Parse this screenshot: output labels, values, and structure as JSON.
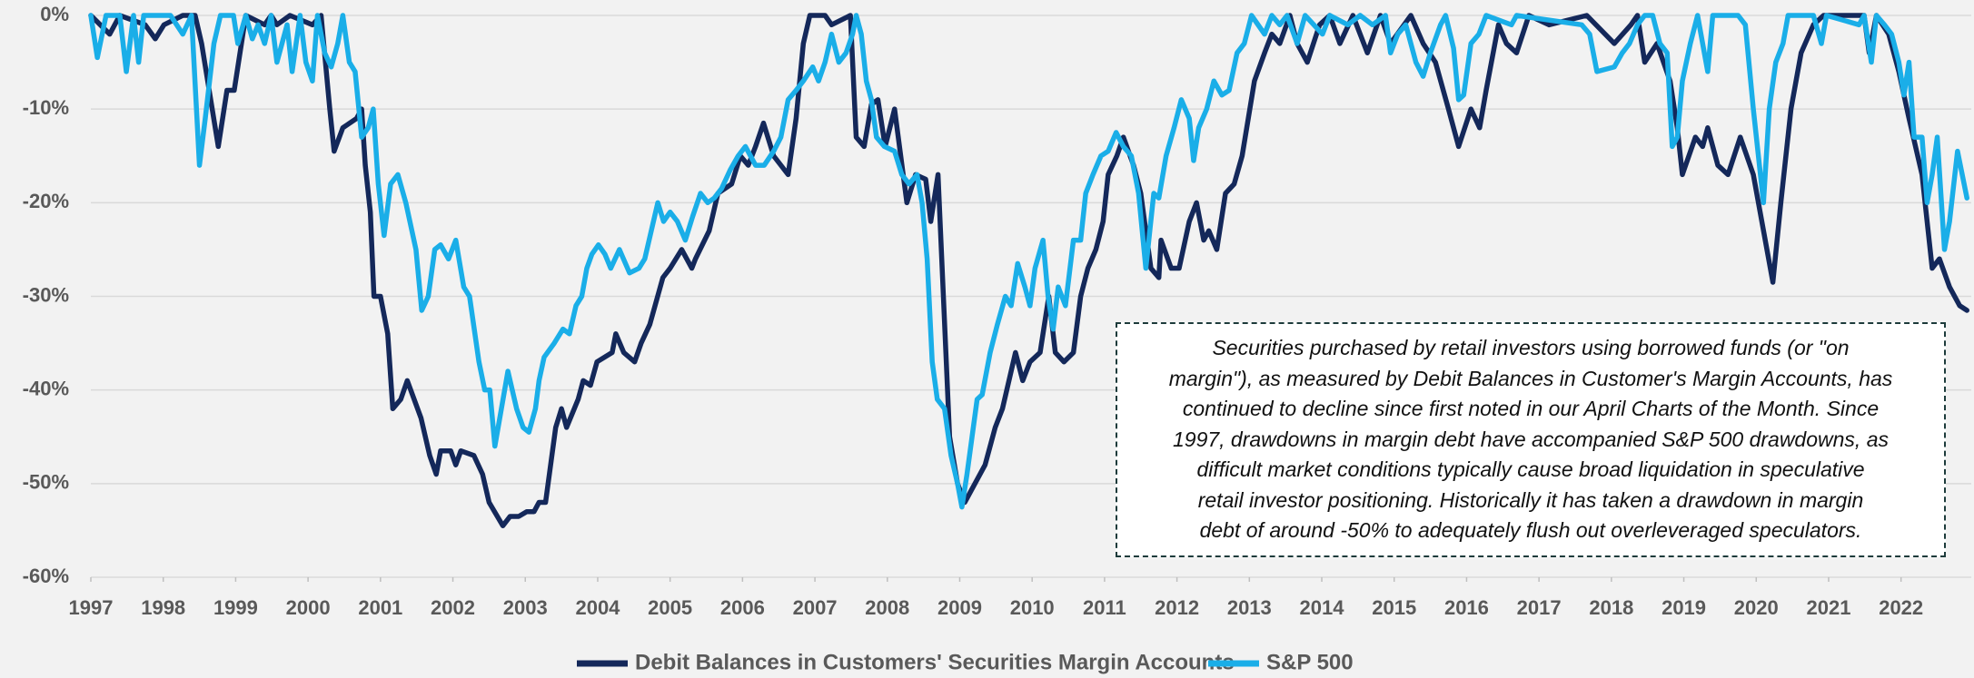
{
  "chart_data": {
    "type": "line",
    "ylim": [
      -60,
      0
    ],
    "yticks": [
      {
        "value": -60,
        "label": "-60%"
      },
      {
        "value": -50,
        "label": "-50%"
      },
      {
        "value": -40,
        "label": "-40%"
      },
      {
        "value": -30,
        "label": "-30%"
      },
      {
        "value": -20,
        "label": "-20%"
      },
      {
        "value": -10,
        "label": "-10%"
      },
      {
        "value": 0,
        "label": "0%"
      }
    ],
    "xlim": [
      1997,
      2022.97
    ],
    "xticks": [
      1997,
      1998,
      1999,
      2000,
      2001,
      2002,
      2003,
      2004,
      2005,
      2006,
      2007,
      2008,
      2009,
      2010,
      2011,
      2012,
      2013,
      2014,
      2015,
      2016,
      2017,
      2018,
      2019,
      2020,
      2021,
      2022
    ],
    "grid": true,
    "legend": "bottom",
    "series": [
      {
        "name": "Debit Balances in Customers' Securities Margin Accounts",
        "color": "#14285a",
        "x": [
          1997.0,
          1997.26,
          1997.4,
          1997.75,
          1997.89,
          1998.01,
          1998.27,
          1998.44,
          1998.53,
          1998.76,
          1998.88,
          1998.98,
          1999.14,
          1999.4,
          1999.49,
          1999.57,
          1999.75,
          2000.06,
          2000.18,
          2000.3,
          2000.36,
          2000.48,
          2000.67,
          2000.74,
          2000.79,
          2000.86,
          2000.91,
          2001.0,
          2001.1,
          2001.17,
          2001.28,
          2001.37,
          2001.56,
          2001.68,
          2001.77,
          2001.83,
          2001.97,
          2002.04,
          2002.11,
          2002.29,
          2002.41,
          2002.5,
          2002.69,
          2002.79,
          2002.91,
          2003.02,
          2003.12,
          2003.19,
          2003.28,
          2003.42,
          2003.5,
          2003.57,
          2003.73,
          2003.8,
          2003.9,
          2003.99,
          2004.2,
          2004.25,
          2004.36,
          2004.51,
          2004.6,
          2004.72,
          2004.9,
          2005.0,
          2005.16,
          2005.3,
          2005.35,
          2005.54,
          2005.66,
          2005.85,
          2005.97,
          2006.08,
          2006.18,
          2006.29,
          2006.43,
          2006.63,
          2006.74,
          2006.84,
          2006.93,
          2007.14,
          2007.23,
          2007.49,
          2007.57,
          2007.68,
          2007.78,
          2007.87,
          2007.97,
          2008.1,
          2008.27,
          2008.39,
          2008.53,
          2008.6,
          2008.7,
          2008.86,
          2008.97,
          2009.07,
          2009.21,
          2009.35,
          2009.49,
          2009.59,
          2009.77,
          2009.87,
          2009.97,
          2010.11,
          2010.23,
          2010.32,
          2010.44,
          2010.57,
          2010.67,
          2010.77,
          2010.88,
          2010.98,
          2011.05,
          2011.17,
          2011.26,
          2011.4,
          2011.5,
          2011.64,
          2011.75,
          2011.78,
          2011.92,
          2012.03,
          2012.17,
          2012.27,
          2012.37,
          2012.44,
          2012.55,
          2012.67,
          2012.79,
          2012.9,
          2013.07,
          2013.21,
          2013.31,
          2013.42,
          2013.56,
          2013.66,
          2013.8,
          2013.97,
          2014.11,
          2014.25,
          2014.43,
          2014.53,
          2014.63,
          2014.81,
          2014.95,
          2015.23,
          2015.4,
          2015.57,
          2015.75,
          2015.89,
          2016.06,
          2016.18,
          2016.27,
          2016.44,
          2016.55,
          2016.69,
          2016.86,
          2017.14,
          2017.66,
          2018.04,
          2018.27,
          2018.36,
          2018.46,
          2018.63,
          2018.81,
          2018.91,
          2018.98,
          2019.16,
          2019.26,
          2019.33,
          2019.47,
          2019.61,
          2019.78,
          2019.96,
          2020.23,
          2020.34,
          2020.48,
          2020.62,
          2020.79,
          2020.93,
          2021.49,
          2021.56,
          2021.66,
          2021.83,
          2021.97,
          2022.11,
          2022.29,
          2022.43,
          2022.53,
          2022.67,
          2022.81,
          2022.91
        ],
        "values": [
          0,
          -2,
          0,
          -1,
          -2.5,
          -1,
          0,
          0,
          -3,
          -14,
          -8,
          -8,
          0,
          -1,
          0,
          -1,
          0,
          -1,
          0,
          -10,
          -14.5,
          -12,
          -11,
          -10,
          -16,
          -21,
          -30,
          -30,
          -34,
          -42,
          -41,
          -39,
          -43,
          -47,
          -49,
          -46.5,
          -46.5,
          -48,
          -46.5,
          -47,
          -49,
          -52,
          -54.5,
          -53.5,
          -53.5,
          -53,
          -53,
          -52,
          -52,
          -44,
          -42,
          -44,
          -41,
          -39,
          -39.5,
          -37,
          -36,
          -34,
          -36,
          -37,
          -35,
          -33,
          -28,
          -27,
          -25,
          -27,
          -26,
          -23,
          -19,
          -18,
          -15,
          -16,
          -14,
          -11.5,
          -15,
          -17,
          -11,
          -3,
          0,
          0,
          -1,
          0,
          -13,
          -14,
          -9.5,
          -9,
          -14,
          -10,
          -20,
          -17,
          -17.5,
          -22,
          -17,
          -45,
          -50,
          -52,
          -50,
          -48,
          -44,
          -42,
          -36,
          -39,
          -37,
          -36,
          -30,
          -36,
          -37,
          -36,
          -30,
          -27,
          -25,
          -22,
          -17,
          -15,
          -13,
          -16,
          -19,
          -27,
          -28,
          -24,
          -27,
          -27,
          -22,
          -20,
          -24,
          -23,
          -25,
          -19,
          -18,
          -15,
          -7,
          -4,
          -2,
          -3,
          0,
          -3,
          -5,
          -1,
          0,
          -3,
          0,
          -2,
          -4,
          0,
          -3,
          0,
          -3,
          -5,
          -10,
          -14,
          -10,
          -12,
          -8,
          -1,
          -3,
          -4,
          0,
          -1,
          0,
          -3,
          -1,
          0,
          -5,
          -3,
          -7,
          -12,
          -17,
          -13,
          -14,
          -12,
          -16,
          -17,
          -13,
          -17,
          -28.5,
          -20,
          -10,
          -4,
          -1,
          0,
          0,
          -4,
          0,
          -2,
          -6,
          -11,
          -17,
          -27,
          -26,
          -29,
          -31,
          -31.5
        ]
      },
      {
        "name": "S&P 500",
        "color": "#1aaee8",
        "x": [
          1997.0,
          1997.09,
          1997.21,
          1997.4,
          1997.49,
          1997.59,
          1997.66,
          1997.73,
          1998.1,
          1998.27,
          1998.39,
          1998.5,
          1998.58,
          1998.7,
          1998.79,
          1998.97,
          1999.03,
          1999.14,
          1999.23,
          1999.31,
          1999.4,
          1999.49,
          1999.57,
          1999.71,
          1999.78,
          1999.89,
          1999.97,
          2000.06,
          2000.13,
          2000.23,
          2000.32,
          2000.41,
          2000.48,
          2000.57,
          2000.65,
          2000.74,
          2000.83,
          2000.9,
          2000.97,
          2001.05,
          2001.14,
          2001.24,
          2001.35,
          2001.49,
          2001.57,
          2001.66,
          2001.75,
          2001.83,
          2001.94,
          2002.04,
          2002.15,
          2002.23,
          2002.36,
          2002.44,
          2002.51,
          2002.58,
          2002.67,
          2002.76,
          2002.88,
          2002.97,
          2003.05,
          2003.14,
          2003.19,
          2003.26,
          2003.4,
          2003.52,
          2003.61,
          2003.7,
          2003.78,
          2003.85,
          2003.92,
          2004.01,
          2004.1,
          2004.18,
          2004.3,
          2004.44,
          2004.57,
          2004.65,
          2004.74,
          2004.83,
          2004.91,
          2005.0,
          2005.1,
          2005.21,
          2005.31,
          2005.42,
          2005.52,
          2005.61,
          2005.71,
          2005.83,
          2005.94,
          2006.04,
          2006.18,
          2006.3,
          2006.43,
          2006.53,
          2006.63,
          2006.74,
          2006.84,
          2006.97,
          2007.05,
          2007.14,
          2007.23,
          2007.33,
          2007.43,
          2007.52,
          2007.57,
          2007.64,
          2007.71,
          2007.78,
          2007.85,
          2007.96,
          2008.1,
          2008.2,
          2008.3,
          2008.41,
          2008.48,
          2008.55,
          2008.62,
          2008.69,
          2008.79,
          2008.88,
          2008.97,
          2009.03,
          2009.1,
          2009.17,
          2009.24,
          2009.31,
          2009.42,
          2009.52,
          2009.63,
          2009.71,
          2009.8,
          2009.9,
          2009.97,
          2010.04,
          2010.15,
          2010.22,
          2010.29,
          2010.36,
          2010.46,
          2010.57,
          2010.67,
          2010.74,
          2010.84,
          2010.95,
          2011.05,
          2011.16,
          2011.26,
          2011.37,
          2011.47,
          2011.57,
          2011.68,
          2011.75,
          2011.85,
          2011.96,
          2012.06,
          2012.17,
          2012.23,
          2012.3,
          2012.41,
          2012.51,
          2012.62,
          2012.72,
          2012.83,
          2012.93,
          2013.03,
          2013.21,
          2013.31,
          2013.42,
          2013.52,
          2013.66,
          2013.77,
          2014.01,
          2014.11,
          2014.36,
          2014.53,
          2014.7,
          2014.88,
          2014.95,
          2015.05,
          2015.16,
          2015.3,
          2015.4,
          2015.5,
          2015.64,
          2015.71,
          2015.82,
          2015.89,
          2015.96,
          2016.06,
          2016.17,
          2016.27,
          2016.62,
          2016.69,
          2017.59,
          2017.7,
          2017.8,
          2018.04,
          2018.15,
          2018.25,
          2018.36,
          2018.46,
          2018.57,
          2018.67,
          2018.77,
          2018.84,
          2018.91,
          2018.98,
          2019.09,
          2019.19,
          2019.26,
          2019.33,
          2019.4,
          2019.75,
          2019.85,
          2019.96,
          2020.1,
          2020.18,
          2020.27,
          2020.37,
          2020.44,
          2020.79,
          2020.9,
          2020.97,
          2021.42,
          2021.49,
          2021.59,
          2021.66,
          2021.77,
          2021.87,
          2021.97,
          2022.04,
          2022.11,
          2022.18,
          2022.29,
          2022.36,
          2022.43,
          2022.5,
          2022.6,
          2022.67,
          2022.78,
          2022.91
        ],
        "values": [
          0,
          -4.5,
          0,
          0,
          -6,
          0,
          -5,
          0,
          0,
          -2,
          0,
          -16,
          -11,
          -3,
          0,
          0,
          -3,
          0,
          -2.5,
          -1,
          -3,
          0,
          -5,
          -1,
          -6,
          0,
          -5,
          -7,
          0,
          -4,
          -5.5,
          -3,
          0,
          -5,
          -6,
          -13,
          -12,
          -10,
          -18,
          -23.5,
          -18,
          -17,
          -20,
          -25,
          -31.5,
          -30,
          -25,
          -24.5,
          -26,
          -24,
          -29,
          -30,
          -37,
          -40,
          -40,
          -46,
          -42,
          -38,
          -42,
          -44,
          -44.5,
          -42,
          -39,
          -36.5,
          -35,
          -33.5,
          -34,
          -31,
          -30,
          -27,
          -25.5,
          -24.5,
          -25.5,
          -27,
          -25,
          -27.5,
          -27,
          -26,
          -23,
          -20,
          -22,
          -21,
          -22,
          -24,
          -21.5,
          -19,
          -20,
          -19.5,
          -18.5,
          -16.5,
          -15,
          -14,
          -16,
          -16,
          -14.5,
          -13,
          -9,
          -8,
          -7,
          -5.5,
          -7,
          -5,
          -2,
          -5,
          -4,
          -2,
          0,
          -2,
          -7,
          -9,
          -13,
          -14,
          -14.5,
          -17,
          -18,
          -17,
          -20,
          -26,
          -37,
          -41,
          -42,
          -47,
          -50,
          -52.5,
          -49,
          -45,
          -41,
          -40.5,
          -36,
          -33,
          -30,
          -31,
          -26.5,
          -29,
          -31,
          -27,
          -24,
          -30,
          -33.5,
          -29,
          -31,
          -24,
          -24,
          -19,
          -17,
          -15,
          -14.5,
          -12.5,
          -14,
          -15,
          -19,
          -27,
          -19,
          -19.5,
          -15,
          -12,
          -9,
          -11,
          -15.5,
          -12,
          -10,
          -7,
          -8.5,
          -8,
          -4,
          -3,
          0,
          -2,
          0,
          -1,
          0,
          -3,
          0,
          -2,
          0,
          -1,
          0,
          -1,
          0,
          -4,
          -2,
          -1,
          -5,
          -6.5,
          -4,
          -1,
          0,
          -3.5,
          -9,
          -8.5,
          -3,
          -2,
          0,
          -1,
          0,
          -1,
          -2,
          -6,
          -5.5,
          -4,
          -3,
          -1,
          0,
          0,
          -3,
          -4,
          -14,
          -13,
          -7,
          -3,
          0,
          -3,
          -6,
          0,
          0,
          -1,
          -10,
          -20,
          -10,
          -5,
          -3,
          0,
          0,
          -3,
          0,
          -1,
          0,
          -5,
          0,
          -1,
          -2,
          -5,
          -8.5,
          -5,
          -13,
          -13,
          -20,
          -17,
          -13,
          -25,
          -22,
          -14.5,
          -19.5
        ]
      }
    ],
    "annotation": [
      "Securities purchased by retail investors using borrowed funds (or \"on",
      "margin\"), as measured by Debit Balances in Customer's Margin Accounts, has",
      "continued to decline since first noted in our April Charts of the Month. Since",
      "1997, drawdowns in margin debt have accompanied S&P 500 drawdowns, as",
      "difficult market conditions typically cause broad liquidation in speculative",
      "retail investor positioning. Historically it has taken a drawdown in margin",
      "debt of around -50% to adequately flush out overleveraged speculators."
    ]
  }
}
